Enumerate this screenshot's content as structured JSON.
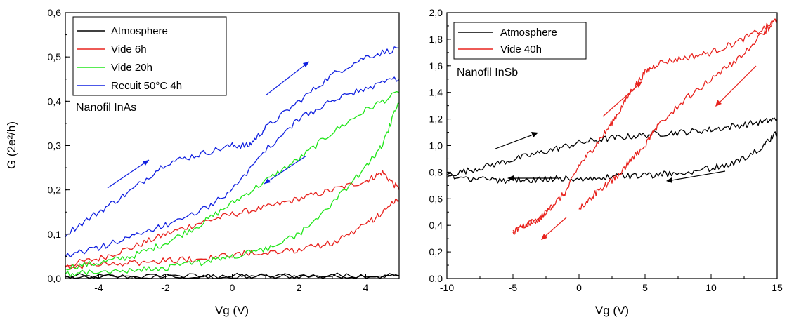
{
  "chart_data": [
    {
      "type": "line",
      "title": "",
      "annotation": "Nanofil InAs",
      "xlabel": "Vg (V)",
      "ylabel": "G (2e²/h)",
      "xlim": [
        -5,
        5
      ],
      "ylim": [
        0,
        0.6
      ],
      "xticks": [
        -4,
        -2,
        0,
        2,
        4
      ],
      "xtick_labels": [
        "-4",
        "-2",
        "0",
        "2",
        "4"
      ],
      "yticks": [
        0,
        0.1,
        0.2,
        0.3,
        0.4,
        0.5,
        0.6
      ],
      "ytick_labels": [
        "0,0",
        "0,1",
        "0,2",
        "0,3",
        "0,4",
        "0,5",
        "0,6"
      ],
      "grid": false,
      "legend_position": "top-left",
      "series": [
        {
          "name": "Atmosphere",
          "color": "#000000",
          "loops": [
            {
              "x": [
                -5,
                -3,
                -1,
                1,
                3,
                5
              ],
              "y": [
                0.004,
                0.004,
                0.005,
                0.005,
                0.006,
                0.007
              ]
            },
            {
              "x": [
                5,
                3,
                1,
                -1,
                -3,
                -5
              ],
              "y": [
                0.005,
                0.004,
                0.004,
                0.003,
                0.003,
                0.003
              ]
            }
          ]
        },
        {
          "name": "Vide 6h",
          "color": "#e8231e",
          "loops": [
            {
              "x": [
                -5,
                -4,
                -3,
                -2,
                -1,
                0,
                1,
                2,
                3,
                4,
                4.5,
                5
              ],
              "y": [
                0.03,
                0.045,
                0.07,
                0.1,
                0.125,
                0.145,
                0.16,
                0.18,
                0.2,
                0.22,
                0.24,
                0.2
              ]
            },
            {
              "x": [
                5,
                4.5,
                4,
                3,
                2,
                1,
                0,
                -1,
                -2,
                -3,
                -4,
                -5
              ],
              "y": [
                0.18,
                0.15,
                0.12,
                0.08,
                0.065,
                0.06,
                0.055,
                0.045,
                0.04,
                0.035,
                0.03,
                0.025
              ]
            }
          ]
        },
        {
          "name": "Vide 20h",
          "color": "#21e61a",
          "loops": [
            {
              "x": [
                -5,
                -4,
                -3,
                -2,
                -1,
                0,
                1,
                2,
                3,
                4,
                5
              ],
              "y": [
                0.025,
                0.035,
                0.05,
                0.08,
                0.12,
                0.17,
                0.22,
                0.27,
                0.33,
                0.38,
                0.42
              ]
            },
            {
              "x": [
                5,
                4.5,
                4,
                3,
                2,
                1,
                0,
                -1,
                -2,
                -3,
                -4,
                -5
              ],
              "y": [
                0.4,
                0.3,
                0.25,
                0.17,
                0.1,
                0.065,
                0.05,
                0.035,
                0.025,
                0.02,
                0.015,
                0.01
              ]
            }
          ]
        },
        {
          "name": "Recuit 50°C 4h",
          "color": "#1020e0",
          "loops": [
            {
              "x": [
                -5,
                -4,
                -3,
                -2,
                -1,
                0,
                0.5,
                1,
                2,
                3,
                4,
                5
              ],
              "y": [
                0.1,
                0.15,
                0.2,
                0.26,
                0.28,
                0.3,
                0.3,
                0.34,
                0.4,
                0.46,
                0.5,
                0.52
              ]
            },
            {
              "x": [
                5,
                4,
                3,
                2,
                1,
                0,
                -1,
                -2,
                -3,
                -4,
                -5
              ],
              "y": [
                0.45,
                0.43,
                0.4,
                0.36,
                0.29,
                0.2,
                0.15,
                0.12,
                0.095,
                0.07,
                0.05
              ]
            }
          ]
        }
      ]
    },
    {
      "type": "line",
      "title": "",
      "annotation": "Nanofil InSb",
      "xlabel": "Vg (V)",
      "ylabel": "",
      "xlim": [
        -10,
        15
      ],
      "ylim": [
        0,
        2
      ],
      "xticks": [
        -10,
        -5,
        0,
        5,
        10,
        15
      ],
      "xtick_labels": [
        "-10",
        "-5",
        "0",
        "5",
        "10",
        "15"
      ],
      "yticks": [
        0,
        0.2,
        0.4,
        0.6,
        0.8,
        1.0,
        1.2,
        1.4,
        1.6,
        1.8,
        2.0
      ],
      "ytick_labels": [
        "0,0",
        "0,2",
        "0,4",
        "0,6",
        "0,8",
        "1,0",
        "1,2",
        "1,4",
        "1,6",
        "1,8",
        "2,0"
      ],
      "grid": false,
      "legend_position": "top-left",
      "series": [
        {
          "name": "Atmosphere",
          "color": "#000000",
          "loops": [
            {
              "x": [
                -10,
                -8,
                -6,
                -4,
                -2,
                0,
                2,
                4,
                6,
                8,
                10,
                12,
                14,
                15
              ],
              "y": [
                0.78,
                0.82,
                0.87,
                0.92,
                0.97,
                1.02,
                1.05,
                1.07,
                1.09,
                1.1,
                1.12,
                1.15,
                1.18,
                1.2
              ]
            },
            {
              "x": [
                15,
                14,
                12,
                10,
                8,
                6,
                4,
                2,
                0,
                -2,
                -4,
                -6,
                -8,
                -10
              ],
              "y": [
                1.1,
                1.0,
                0.88,
                0.83,
                0.8,
                0.78,
                0.77,
                0.76,
                0.75,
                0.75,
                0.74,
                0.74,
                0.75,
                0.76
              ]
            }
          ]
        },
        {
          "name": "Vide 40h",
          "color": "#e8231e",
          "loops": [
            {
              "x": [
                -5,
                -3,
                -2,
                -1,
                0,
                1,
                2,
                3,
                4,
                5,
                6,
                8,
                10,
                12,
                14,
                15
              ],
              "y": [
                0.35,
                0.45,
                0.55,
                0.65,
                0.85,
                0.97,
                1.1,
                1.25,
                1.42,
                1.55,
                1.62,
                1.66,
                1.7,
                1.78,
                1.88,
                1.95
              ]
            },
            {
              "x": [
                15,
                14,
                12,
                10,
                8,
                6,
                5,
                4,
                3,
                2,
                1,
                0
              ],
              "y": [
                1.95,
                1.85,
                1.65,
                1.5,
                1.35,
                1.15,
                1.0,
                0.9,
                0.78,
                0.7,
                0.62,
                0.52
              ]
            },
            {
              "x": [
                -2,
                -3,
                -4,
                -5
              ],
              "y": [
                0.55,
                0.45,
                0.4,
                0.35
              ]
            }
          ]
        }
      ]
    }
  ]
}
